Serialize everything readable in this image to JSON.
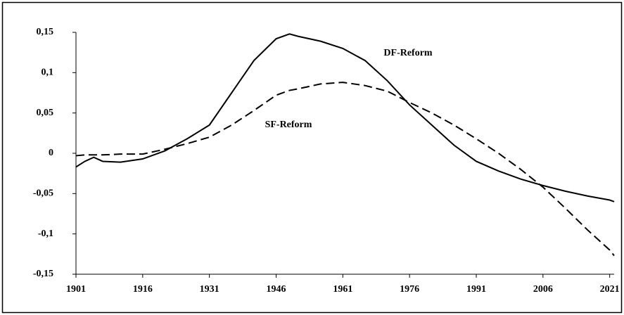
{
  "chart_data": {
    "type": "line",
    "x": [
      1901,
      1903,
      1905,
      1907,
      1911,
      1916,
      1921,
      1926,
      1931,
      1936,
      1941,
      1946,
      1949,
      1951,
      1956,
      1961,
      1966,
      1971,
      1976,
      1981,
      1986,
      1991,
      1996,
      2001,
      2006,
      2011,
      2016,
      2021,
      2022
    ],
    "series": [
      {
        "name": "DF-Reform",
        "color": "#000000",
        "dash": "solid",
        "values": [
          -0.017,
          -0.01,
          -0.005,
          -0.01,
          -0.011,
          -0.007,
          0.003,
          0.018,
          0.035,
          0.075,
          0.115,
          0.142,
          0.148,
          0.145,
          0.139,
          0.13,
          0.115,
          0.09,
          0.06,
          0.035,
          0.01,
          -0.01,
          -0.022,
          -0.032,
          -0.04,
          -0.047,
          -0.053,
          -0.058,
          -0.06
        ]
      },
      {
        "name": "SF-Reform",
        "color": "#000000",
        "dash": "dashed",
        "values": [
          -0.003,
          -0.002,
          -0.002,
          -0.002,
          -0.001,
          -0.001,
          0.005,
          0.012,
          0.02,
          0.035,
          0.053,
          0.072,
          0.078,
          0.08,
          0.086,
          0.088,
          0.084,
          0.077,
          0.063,
          0.05,
          0.035,
          0.018,
          0.0,
          -0.02,
          -0.042,
          -0.068,
          -0.095,
          -0.12,
          -0.127
        ]
      }
    ],
    "xlim": [
      1901,
      2022
    ],
    "xticks": [
      1901,
      1916,
      1931,
      1946,
      1961,
      1976,
      1991,
      2006,
      2021
    ],
    "ylim": [
      -0.15,
      0.15
    ],
    "yticks": [
      {
        "value": -0.15,
        "label": "-0,15"
      },
      {
        "value": -0.1,
        "label": "-0,1"
      },
      {
        "value": -0.05,
        "label": "-0,05"
      },
      0,
      {
        "value": 0.05,
        "label": "0,05"
      },
      {
        "value": 0.1,
        "label": "0,1"
      },
      {
        "value": 0.15,
        "label": "0,15"
      }
    ],
    "grid": false
  }
}
